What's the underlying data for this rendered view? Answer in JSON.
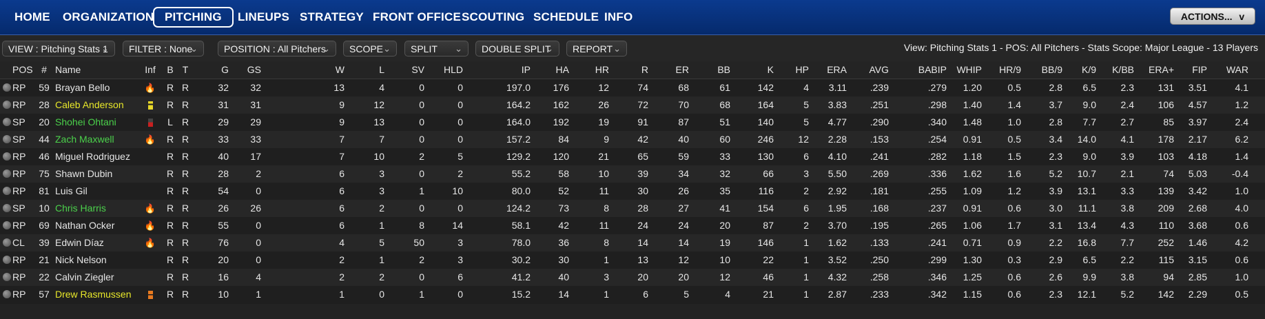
{
  "nav": {
    "items": [
      "HOME",
      "ORGANIZATION",
      "PITCHING",
      "LINEUPS",
      "STRATEGY",
      "FRONT OFFICE",
      "SCOUTING",
      "SCHEDULE",
      "INFO"
    ],
    "active": "PITCHING",
    "actions_label": "ACTIONS...",
    "actions_chev": "v"
  },
  "filters": {
    "view": "VIEW : Pitching Stats 1",
    "filter": "FILTER : None",
    "position": "POSITION : All Pitchers",
    "scope": "SCOPE",
    "split": "SPLIT",
    "double_split": "DOUBLE SPLIT",
    "report": "REPORT",
    "summary": "View: Pitching Stats 1 - POS: All Pitchers - Stats Scope: Major League - 13 Players"
  },
  "table": {
    "headers": [
      "POS",
      "#",
      "Name",
      "Inf",
      "B",
      "T",
      "G",
      "GS",
      "W",
      "L",
      "SV",
      "HLD",
      "IP",
      "HA",
      "HR",
      "R",
      "ER",
      "BB",
      "K",
      "HP",
      "ERA",
      "AVG",
      "BABIP",
      "WHIP",
      "HR/9",
      "BB/9",
      "K/9",
      "K/BB",
      "ERA+",
      "FIP",
      "WAR"
    ],
    "rows": [
      {
        "pos": "RP",
        "num": "59",
        "name": "Brayan Bello",
        "name_color": "white",
        "inf": "fire",
        "b": "R",
        "t": "R",
        "g": "32",
        "gs": "32",
        "w": "13",
        "l": "4",
        "sv": "0",
        "hld": "0",
        "ip": "197.0",
        "ha": "176",
        "hr": "12",
        "r": "74",
        "er": "68",
        "bb": "61",
        "k": "142",
        "hp": "4",
        "era": "3.11",
        "avg": ".239",
        "babip": ".279",
        "whip": "1.20",
        "hr9": "0.5",
        "bb9": "2.8",
        "k9": "6.5",
        "kbb": "2.3",
        "eraplus": "131",
        "fip": "3.51",
        "war": "4.1"
      },
      {
        "pos": "RP",
        "num": "28",
        "name": "Caleb Anderson",
        "name_color": "yellow",
        "inf": "yellow-box",
        "b": "R",
        "t": "R",
        "g": "31",
        "gs": "31",
        "w": "9",
        "l": "12",
        "sv": "0",
        "hld": "0",
        "ip": "164.2",
        "ha": "162",
        "hr": "26",
        "r": "72",
        "er": "70",
        "bb": "68",
        "k": "164",
        "hp": "5",
        "era": "3.83",
        "avg": ".251",
        "babip": ".298",
        "whip": "1.40",
        "hr9": "1.4",
        "bb9": "3.7",
        "k9": "9.0",
        "kbb": "2.4",
        "eraplus": "106",
        "fip": "4.57",
        "war": "1.2"
      },
      {
        "pos": "SP",
        "num": "20",
        "name": "Shohei Ohtani",
        "name_color": "green",
        "inf": "red-box",
        "b": "L",
        "t": "R",
        "g": "29",
        "gs": "29",
        "w": "9",
        "l": "13",
        "sv": "0",
        "hld": "0",
        "ip": "164.0",
        "ha": "192",
        "hr": "19",
        "r": "91",
        "er": "87",
        "bb": "51",
        "k": "140",
        "hp": "5",
        "era": "4.77",
        "avg": ".290",
        "babip": ".340",
        "whip": "1.48",
        "hr9": "1.0",
        "bb9": "2.8",
        "k9": "7.7",
        "kbb": "2.7",
        "eraplus": "85",
        "fip": "3.97",
        "war": "2.4"
      },
      {
        "pos": "SP",
        "num": "44",
        "name": "Zach Maxwell",
        "name_color": "green",
        "inf": "fire",
        "b": "R",
        "t": "R",
        "g": "33",
        "gs": "33",
        "w": "7",
        "l": "7",
        "sv": "0",
        "hld": "0",
        "ip": "157.2",
        "ha": "84",
        "hr": "9",
        "r": "42",
        "er": "40",
        "bb": "60",
        "k": "246",
        "hp": "12",
        "era": "2.28",
        "avg": ".153",
        "babip": ".254",
        "whip": "0.91",
        "hr9": "0.5",
        "bb9": "3.4",
        "k9": "14.0",
        "kbb": "4.1",
        "eraplus": "178",
        "fip": "2.17",
        "war": "6.2"
      },
      {
        "pos": "RP",
        "num": "46",
        "name": "Miguel Rodriguez",
        "name_color": "white",
        "inf": "",
        "b": "R",
        "t": "R",
        "g": "40",
        "gs": "17",
        "w": "7",
        "l": "10",
        "sv": "2",
        "hld": "5",
        "ip": "129.2",
        "ha": "120",
        "hr": "21",
        "r": "65",
        "er": "59",
        "bb": "33",
        "k": "130",
        "hp": "6",
        "era": "4.10",
        "avg": ".241",
        "babip": ".282",
        "whip": "1.18",
        "hr9": "1.5",
        "bb9": "2.3",
        "k9": "9.0",
        "kbb": "3.9",
        "eraplus": "103",
        "fip": "4.18",
        "war": "1.4"
      },
      {
        "pos": "RP",
        "num": "75",
        "name": "Shawn Dubin",
        "name_color": "white",
        "inf": "",
        "b": "R",
        "t": "R",
        "g": "28",
        "gs": "2",
        "w": "6",
        "l": "3",
        "sv": "0",
        "hld": "2",
        "ip": "55.2",
        "ha": "58",
        "hr": "10",
        "r": "39",
        "er": "34",
        "bb": "32",
        "k": "66",
        "hp": "3",
        "era": "5.50",
        "avg": ".269",
        "babip": ".336",
        "whip": "1.62",
        "hr9": "1.6",
        "bb9": "5.2",
        "k9": "10.7",
        "kbb": "2.1",
        "eraplus": "74",
        "fip": "5.03",
        "war": "-0.4"
      },
      {
        "pos": "RP",
        "num": "81",
        "name": "Luis Gil",
        "name_color": "white",
        "inf": "",
        "b": "R",
        "t": "R",
        "g": "54",
        "gs": "0",
        "w": "6",
        "l": "3",
        "sv": "1",
        "hld": "10",
        "ip": "80.0",
        "ha": "52",
        "hr": "11",
        "r": "30",
        "er": "26",
        "bb": "35",
        "k": "116",
        "hp": "2",
        "era": "2.92",
        "avg": ".181",
        "babip": ".255",
        "whip": "1.09",
        "hr9": "1.2",
        "bb9": "3.9",
        "k9": "13.1",
        "kbb": "3.3",
        "eraplus": "139",
        "fip": "3.42",
        "war": "1.0"
      },
      {
        "pos": "SP",
        "num": "10",
        "name": "Chris Harris",
        "name_color": "green",
        "inf": "fire",
        "b": "R",
        "t": "R",
        "g": "26",
        "gs": "26",
        "w": "6",
        "l": "2",
        "sv": "0",
        "hld": "0",
        "ip": "124.2",
        "ha": "73",
        "hr": "8",
        "r": "28",
        "er": "27",
        "bb": "41",
        "k": "154",
        "hp": "6",
        "era": "1.95",
        "avg": ".168",
        "babip": ".237",
        "whip": "0.91",
        "hr9": "0.6",
        "bb9": "3.0",
        "k9": "11.1",
        "kbb": "3.8",
        "eraplus": "209",
        "fip": "2.68",
        "war": "4.0"
      },
      {
        "pos": "RP",
        "num": "69",
        "name": "Nathan Ocker",
        "name_color": "white",
        "inf": "fire",
        "b": "R",
        "t": "R",
        "g": "55",
        "gs": "0",
        "w": "6",
        "l": "1",
        "sv": "8",
        "hld": "14",
        "ip": "58.1",
        "ha": "42",
        "hr": "11",
        "r": "24",
        "er": "24",
        "bb": "20",
        "k": "87",
        "hp": "2",
        "era": "3.70",
        "avg": ".195",
        "babip": ".265",
        "whip": "1.06",
        "hr9": "1.7",
        "bb9": "3.1",
        "k9": "13.4",
        "kbb": "4.3",
        "eraplus": "110",
        "fip": "3.68",
        "war": "0.6"
      },
      {
        "pos": "CL",
        "num": "39",
        "name": "Edwin Díaz",
        "name_color": "white",
        "inf": "fire",
        "b": "R",
        "t": "R",
        "g": "76",
        "gs": "0",
        "w": "4",
        "l": "5",
        "sv": "50",
        "hld": "3",
        "ip": "78.0",
        "ha": "36",
        "hr": "8",
        "r": "14",
        "er": "14",
        "bb": "19",
        "k": "146",
        "hp": "1",
        "era": "1.62",
        "avg": ".133",
        "babip": ".241",
        "whip": "0.71",
        "hr9": "0.9",
        "bb9": "2.2",
        "k9": "16.8",
        "kbb": "7.7",
        "eraplus": "252",
        "fip": "1.46",
        "war": "4.2"
      },
      {
        "pos": "RP",
        "num": "21",
        "name": "Nick Nelson",
        "name_color": "white",
        "inf": "",
        "b": "R",
        "t": "R",
        "g": "20",
        "gs": "0",
        "w": "2",
        "l": "1",
        "sv": "2",
        "hld": "3",
        "ip": "30.2",
        "ha": "30",
        "hr": "1",
        "r": "13",
        "er": "12",
        "bb": "10",
        "k": "22",
        "hp": "1",
        "era": "3.52",
        "avg": ".250",
        "babip": ".299",
        "whip": "1.30",
        "hr9": "0.3",
        "bb9": "2.9",
        "k9": "6.5",
        "kbb": "2.2",
        "eraplus": "115",
        "fip": "3.15",
        "war": "0.6"
      },
      {
        "pos": "RP",
        "num": "22",
        "name": "Calvin Ziegler",
        "name_color": "white",
        "inf": "",
        "b": "R",
        "t": "R",
        "g": "16",
        "gs": "4",
        "w": "2",
        "l": "2",
        "sv": "0",
        "hld": "6",
        "ip": "41.2",
        "ha": "40",
        "hr": "3",
        "r": "20",
        "er": "20",
        "bb": "12",
        "k": "46",
        "hp": "1",
        "era": "4.32",
        "avg": ".258",
        "babip": ".346",
        "whip": "1.25",
        "hr9": "0.6",
        "bb9": "2.6",
        "k9": "9.9",
        "kbb": "3.8",
        "eraplus": "94",
        "fip": "2.85",
        "war": "1.0"
      },
      {
        "pos": "RP",
        "num": "57",
        "name": "Drew Rasmussen",
        "name_color": "yellow",
        "inf": "orange-box",
        "b": "R",
        "t": "R",
        "g": "10",
        "gs": "1",
        "w": "1",
        "l": "0",
        "sv": "1",
        "hld": "0",
        "ip": "15.2",
        "ha": "14",
        "hr": "1",
        "r": "6",
        "er": "5",
        "bb": "4",
        "k": "21",
        "hp": "1",
        "era": "2.87",
        "avg": ".233",
        "babip": ".342",
        "whip": "1.15",
        "hr9": "0.6",
        "bb9": "2.3",
        "k9": "12.1",
        "kbb": "5.2",
        "eraplus": "142",
        "fip": "2.29",
        "war": "0.5"
      }
    ]
  },
  "colors": {
    "nav_bg": "#0b3a8e",
    "name_yellow": "#e8e82a",
    "name_green": "#4bd14b",
    "fire": "#ff5a1f"
  }
}
